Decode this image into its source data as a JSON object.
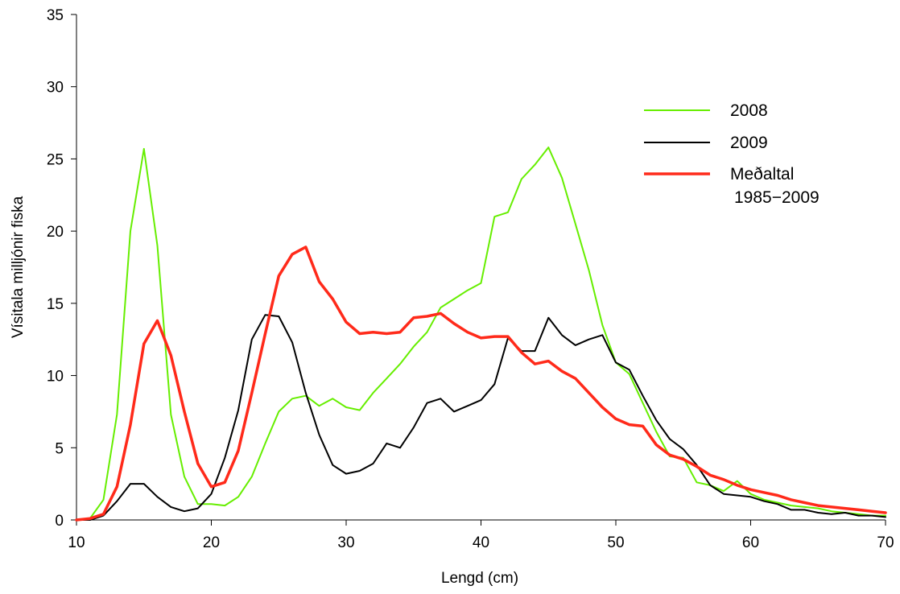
{
  "chart_data": {
    "type": "line",
    "xlabel": "Lengd (cm)",
    "ylabel": "Vísitala milljónir fiska",
    "xlim": [
      10,
      70
    ],
    "ylim": [
      0,
      35
    ],
    "xticks": [
      10,
      20,
      30,
      40,
      50,
      60,
      70
    ],
    "yticks": [
      0,
      5,
      10,
      15,
      20,
      25,
      30,
      35
    ],
    "grid": false,
    "legend_position": "top-right",
    "x": [
      10,
      11,
      12,
      13,
      14,
      15,
      16,
      17,
      18,
      19,
      20,
      21,
      22,
      23,
      24,
      25,
      26,
      27,
      28,
      29,
      30,
      31,
      32,
      33,
      34,
      35,
      36,
      37,
      38,
      39,
      40,
      41,
      42,
      43,
      44,
      45,
      46,
      47,
      48,
      49,
      50,
      51,
      52,
      53,
      54,
      55,
      56,
      57,
      58,
      59,
      60,
      61,
      62,
      63,
      64,
      65,
      66,
      67,
      68,
      69,
      70
    ],
    "series": [
      {
        "name": "2008",
        "color": "#66ee00",
        "width": 2,
        "values": [
          0.0,
          0.1,
          1.4,
          7.3,
          20.0,
          25.7,
          19.0,
          7.3,
          3.0,
          1.1,
          1.1,
          1.0,
          1.6,
          3.0,
          5.3,
          7.5,
          8.4,
          8.6,
          7.9,
          8.4,
          7.8,
          7.6,
          8.8,
          9.8,
          10.8,
          12.0,
          13.0,
          14.7,
          15.3,
          15.9,
          16.4,
          21.0,
          21.3,
          23.6,
          24.6,
          25.8,
          23.7,
          20.5,
          17.3,
          13.5,
          10.9,
          10.1,
          8.1,
          6.1,
          4.4,
          4.3,
          2.6,
          2.4,
          2.0,
          2.7,
          1.8,
          1.4,
          1.2,
          1.0,
          0.9,
          0.8,
          0.6,
          0.5,
          0.4,
          0.3,
          0.3
        ]
      },
      {
        "name": "2009",
        "color": "#000000",
        "width": 2,
        "values": [
          0.0,
          0.0,
          0.3,
          1.3,
          2.5,
          2.5,
          1.6,
          0.9,
          0.6,
          0.8,
          1.8,
          4.3,
          7.6,
          12.5,
          14.2,
          14.1,
          12.3,
          8.8,
          5.9,
          3.8,
          3.2,
          3.4,
          3.9,
          5.3,
          5.0,
          6.4,
          8.1,
          8.4,
          7.5,
          7.9,
          8.3,
          9.4,
          12.6,
          11.7,
          11.7,
          14.0,
          12.8,
          12.1,
          12.5,
          12.8,
          10.9,
          10.4,
          8.6,
          6.9,
          5.6,
          4.9,
          3.8,
          2.4,
          1.8,
          1.7,
          1.6,
          1.3,
          1.1,
          0.7,
          0.7,
          0.5,
          0.4,
          0.5,
          0.3,
          0.3,
          0.2
        ]
      },
      {
        "name": "Meðaltal\n 1985-2009",
        "legend_lines": [
          "Meðaltal",
          " 1985−2009"
        ],
        "color": "#ff2a1a",
        "width": 3.5,
        "values": [
          0.0,
          0.1,
          0.4,
          2.3,
          6.6,
          12.2,
          13.8,
          11.4,
          7.5,
          3.9,
          2.3,
          2.6,
          4.8,
          8.8,
          12.9,
          16.9,
          18.4,
          18.9,
          16.5,
          15.3,
          13.7,
          12.9,
          13.0,
          12.9,
          13.0,
          14.0,
          14.1,
          14.3,
          13.6,
          13.0,
          12.6,
          12.7,
          12.7,
          11.6,
          10.8,
          11.0,
          10.3,
          9.8,
          8.8,
          7.8,
          7.0,
          6.6,
          6.5,
          5.2,
          4.5,
          4.2,
          3.7,
          3.1,
          2.8,
          2.4,
          2.1,
          1.9,
          1.7,
          1.4,
          1.2,
          1.0,
          0.9,
          0.8,
          0.7,
          0.6,
          0.5
        ]
      }
    ]
  }
}
